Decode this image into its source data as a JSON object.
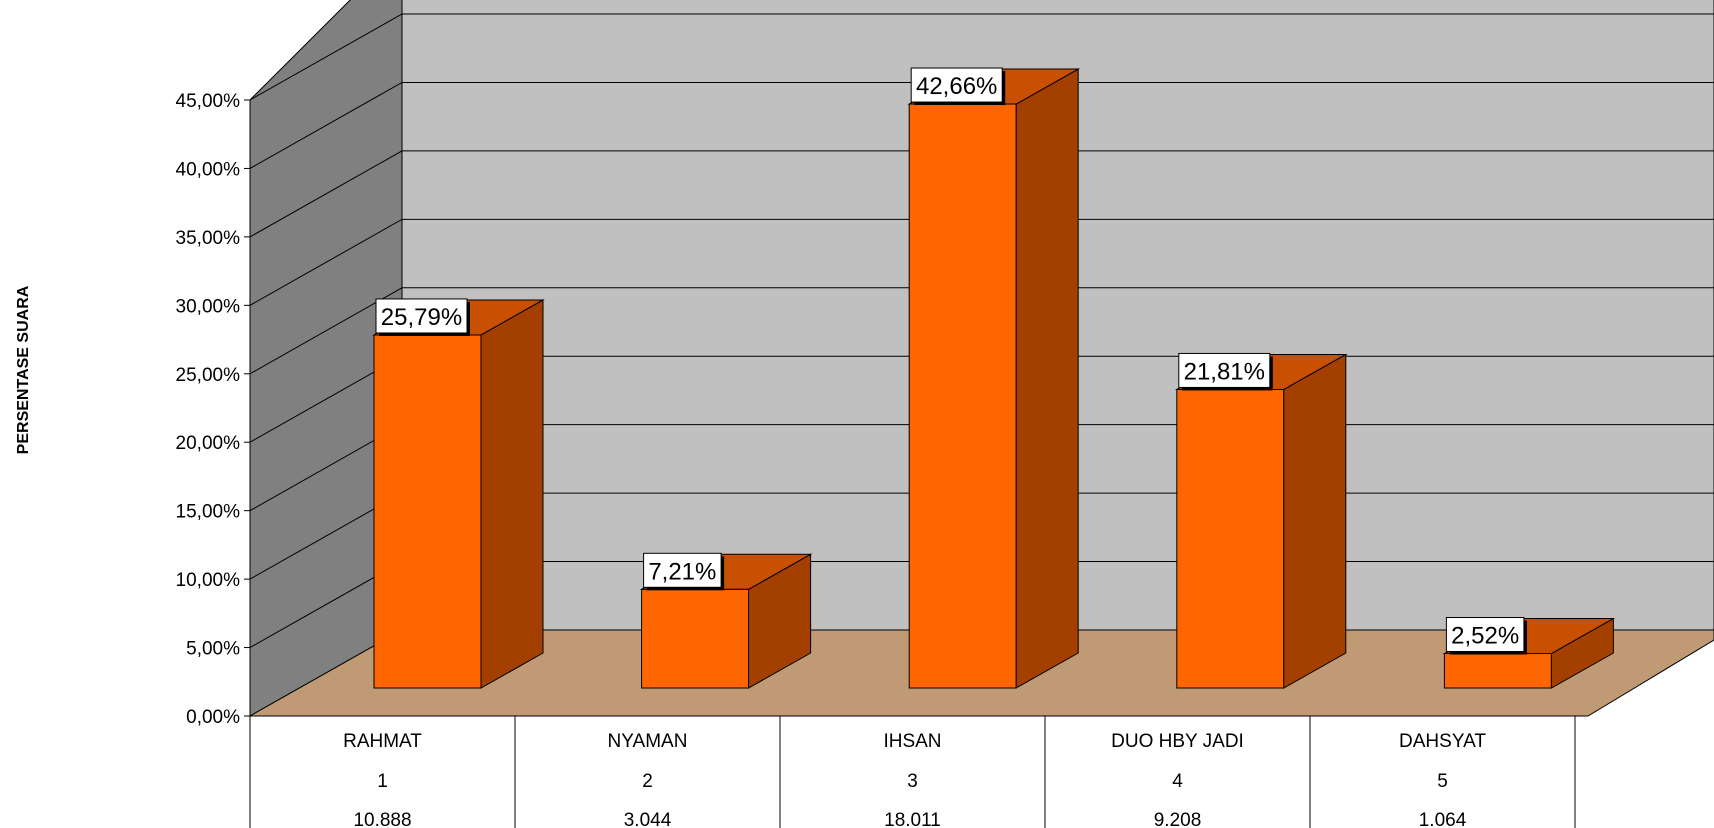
{
  "chart_data": {
    "type": "bar",
    "ylabel": "PERSENTASE SUARA",
    "ylim": [
      0,
      45
    ],
    "yticks": [
      "0,00%",
      "5,00%",
      "10,00%",
      "15,00%",
      "20,00%",
      "25,00%",
      "30,00%",
      "35,00%",
      "40,00%",
      "45,00%"
    ],
    "categories": [
      "RAHMAT",
      "NYAMAN",
      "IHSAN",
      "DUO HBY JADI",
      "DAHSYAT"
    ],
    "numbers": [
      "1",
      "2",
      "3",
      "4",
      "5"
    ],
    "votes": [
      "10.888",
      "3.044",
      "18.011",
      "9.208",
      "1.064"
    ],
    "values": [
      25.79,
      7.21,
      42.66,
      21.81,
      2.52
    ],
    "data_labels": [
      "25,79%",
      "7,21%",
      "42,66%",
      "21,81%",
      "2,52%"
    ],
    "grid": true,
    "colors": {
      "bar_front": "#FF6600",
      "bar_side": "#A34000",
      "bar_top": "#C85000",
      "back_wall": "#C0C0C0",
      "side_wall": "#808080",
      "floor": "#C09A74"
    }
  }
}
